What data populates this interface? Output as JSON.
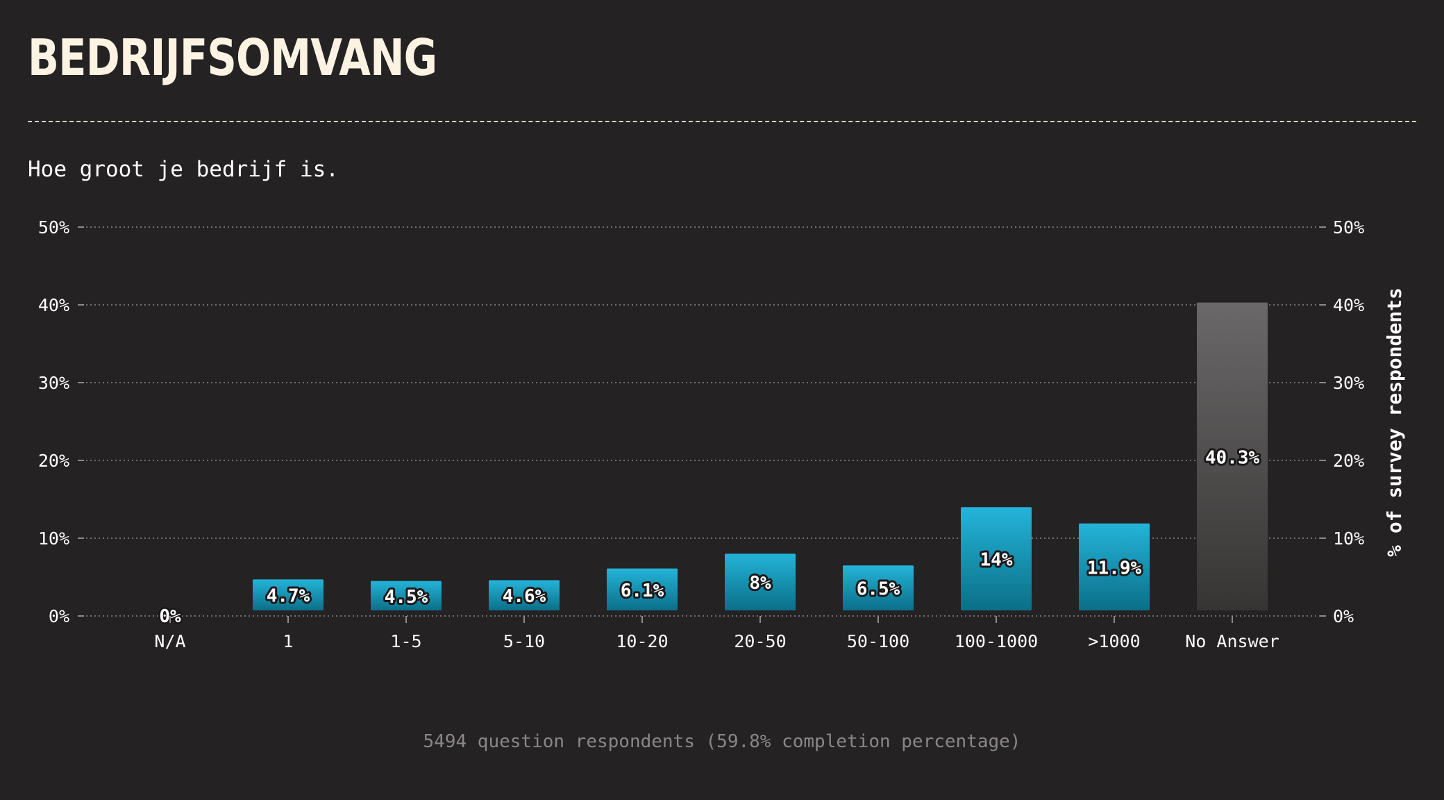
{
  "header": {
    "title": "BEDRIJFSOMVANG",
    "subtitle": "Hoe groot je bedrijf is."
  },
  "footer": {
    "note": "5494 question respondents (59.8% completion percentage)"
  },
  "colors": {
    "background": "#252223",
    "bar_top": "#24b4d9",
    "bar_bottom": "#0b6f88",
    "na_bar_top": "#6a6868",
    "na_bar_bottom": "#373434",
    "title": "#fdf3e3",
    "grid": "#8e8a8a"
  },
  "chart_data": {
    "type": "bar",
    "title": "BEDRIJFSOMVANG",
    "subtitle": "Hoe groot je bedrijf is.",
    "ylabel": "% of survey respondents",
    "xlabel": "",
    "ylim": [
      0,
      50
    ],
    "yticks": [
      0,
      10,
      20,
      30,
      40,
      50
    ],
    "ytick_labels": [
      "0%",
      "10%",
      "20%",
      "30%",
      "40%",
      "50%"
    ],
    "grid": true,
    "categories": [
      "N/A",
      "1",
      "1-5",
      "5-10",
      "10-20",
      "20-50",
      "50-100",
      "100-1000",
      ">1000",
      "No Answer"
    ],
    "values": [
      0,
      4.7,
      4.5,
      4.6,
      6.1,
      8,
      6.5,
      14,
      11.9,
      40.3
    ],
    "value_labels": [
      "0%",
      "4.7%",
      "4.5%",
      "4.6%",
      "6.1%",
      "8%",
      "6.5%",
      "14%",
      "11.9%",
      "40.3%"
    ],
    "no_answer_category": "No Answer"
  }
}
